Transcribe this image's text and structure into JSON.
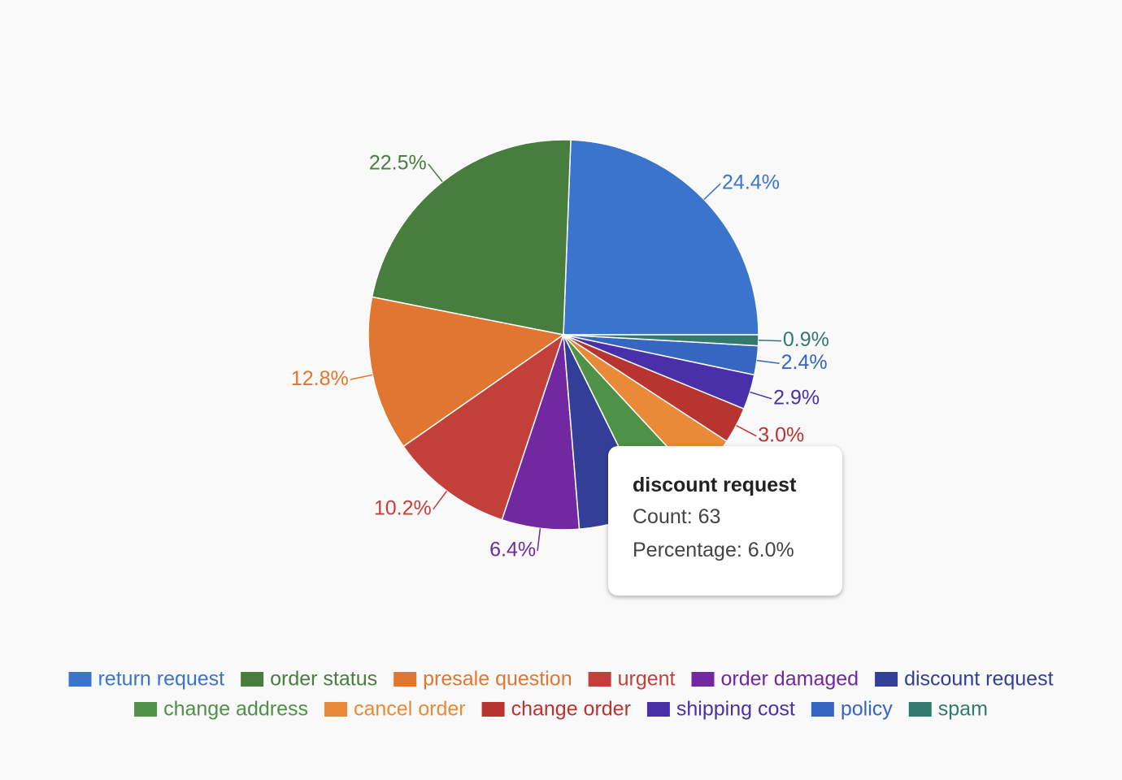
{
  "chart_data": {
    "type": "pie",
    "categories": [
      "return request",
      "order status",
      "presale question",
      "urgent",
      "order damaged",
      "discount request",
      "change address",
      "cancel order",
      "change order",
      "shipping cost",
      "policy",
      "spam"
    ],
    "values": [
      24.4,
      22.5,
      12.8,
      10.2,
      6.4,
      6.0,
      4.6,
      3.9,
      3.0,
      2.9,
      2.4,
      0.9
    ],
    "value_labels": [
      "24.4%",
      "22.5%",
      "12.8%",
      "10.2%",
      "6.4%",
      null,
      null,
      null,
      "3.0%",
      "2.9%",
      "2.4%",
      "0.9%"
    ],
    "colors": [
      "#3a74cc",
      "#477e3e",
      "#e07630",
      "#c33f3a",
      "#7128a0",
      "#333f96",
      "#4f9146",
      "#e88a37",
      "#b73431",
      "#4a30a8",
      "#3566c1",
      "#327a6e"
    ],
    "legend": "bottom",
    "tooltip": {
      "title": "discount request",
      "lines": [
        "Count: 63",
        "Percentage: 6.0%"
      ]
    }
  }
}
